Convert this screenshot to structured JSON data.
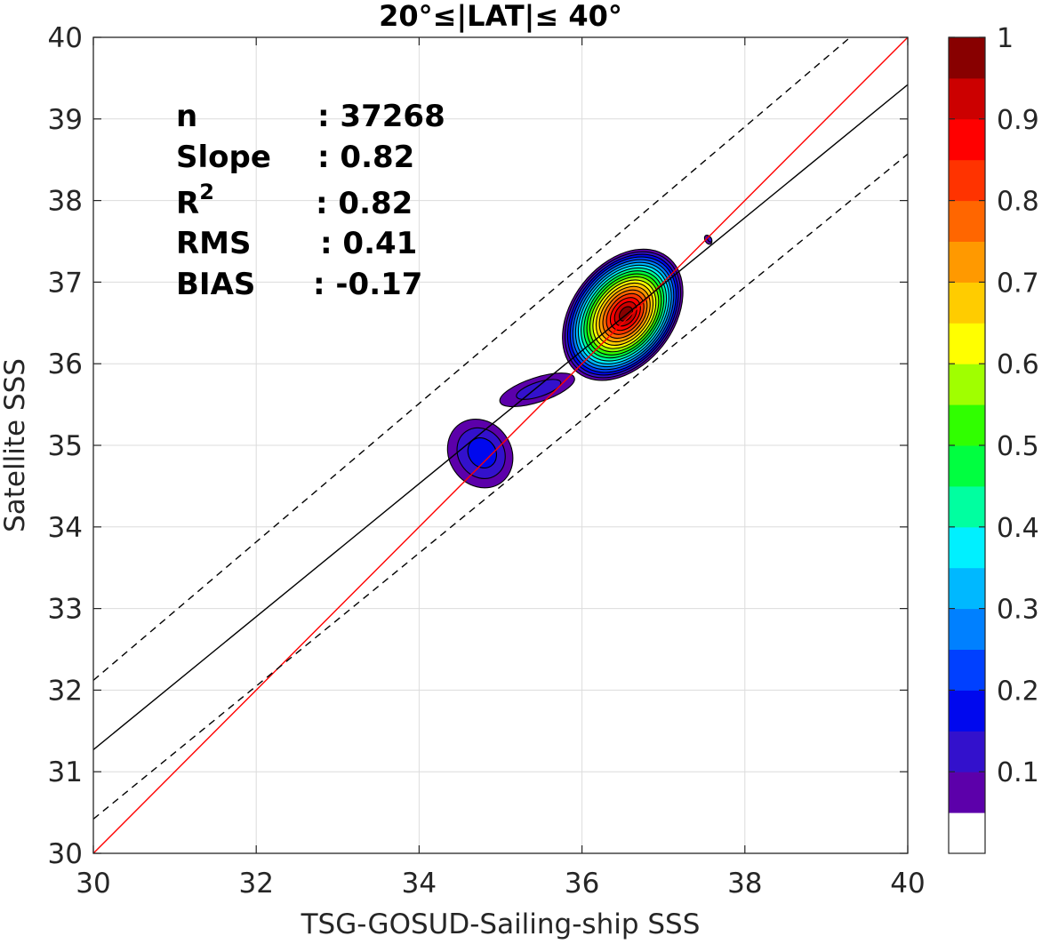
{
  "chart_data": {
    "type": "heatmap",
    "title": "20°≤|LAT|≤ 40°",
    "xlabel": "TSG-GOSUD-Sailing-ship SSS",
    "ylabel": "Satellite SSS",
    "xlim": [
      30,
      40
    ],
    "ylim": [
      30,
      40
    ],
    "x_ticks": [
      "30",
      "32",
      "34",
      "36",
      "38",
      "40"
    ],
    "y_ticks": [
      "30",
      "31",
      "32",
      "33",
      "34",
      "35",
      "36",
      "37",
      "38",
      "39",
      "40"
    ],
    "grid": true,
    "stats": [
      {
        "label": "n",
        "value": ": 37268"
      },
      {
        "label": "Slope",
        "value": ": 0.82"
      },
      {
        "label": "R",
        "sup": "2",
        "value": ": 0.82"
      },
      {
        "label": "RMS",
        "value": ": 0.41"
      },
      {
        "label": "BIAS",
        "value": ": -0.17"
      }
    ],
    "lines": [
      {
        "name": "identity",
        "color": "#ff0000",
        "style": "solid",
        "x": [
          30,
          40
        ],
        "y": [
          30,
          40
        ]
      },
      {
        "name": "regression",
        "color": "#000000",
        "style": "solid",
        "x": [
          30,
          40
        ],
        "y": [
          31.27,
          39.42
        ]
      },
      {
        "name": "upper-bound",
        "color": "#000000",
        "style": "dashed",
        "x": [
          30,
          40
        ],
        "y": [
          32.12,
          40.6
        ]
      },
      {
        "name": "lower-bound",
        "color": "#000000",
        "style": "dashed",
        "x": [
          30,
          40
        ],
        "y": [
          30.42,
          38.57
        ]
      }
    ],
    "colorbar": {
      "min": 0,
      "max": 1,
      "tick_labels": [
        "0.1",
        "0.2",
        "0.3",
        "0.4",
        "0.5",
        "0.6",
        "0.7",
        "0.8",
        "0.9",
        "1"
      ],
      "tick_values": [
        0.1,
        0.2,
        0.3,
        0.4,
        0.5,
        0.6,
        0.7,
        0.8,
        0.9,
        1.0
      ],
      "levels": [
        "#ffffff",
        "#5c00aa",
        "#3311cc",
        "#0008ee",
        "#0040ff",
        "#0080ff",
        "#00b8ff",
        "#00f0ff",
        "#00ffa0",
        "#00ff40",
        "#30ff00",
        "#a0ff00",
        "#ffff00",
        "#ffcc00",
        "#ff9900",
        "#ff6600",
        "#ff3300",
        "#ff0000",
        "#cc0000",
        "#880000"
      ]
    },
    "density_regions": [
      {
        "cx": 36.5,
        "cy": 36.6,
        "rx": 0.9,
        "ry": 0.62,
        "angle": 52,
        "max_level": 19
      },
      {
        "cx": 34.75,
        "cy": 34.9,
        "rx": 0.38,
        "ry": 0.44,
        "angle": 35,
        "max_level": 3
      },
      {
        "cx": 35.45,
        "cy": 35.68,
        "rx": 0.48,
        "ry": 0.15,
        "angle": 18,
        "max_level": 2
      },
      {
        "cx": 37.55,
        "cy": 37.52,
        "rx": 0.04,
        "ry": 0.06,
        "angle": 30,
        "max_level": 2
      }
    ]
  }
}
